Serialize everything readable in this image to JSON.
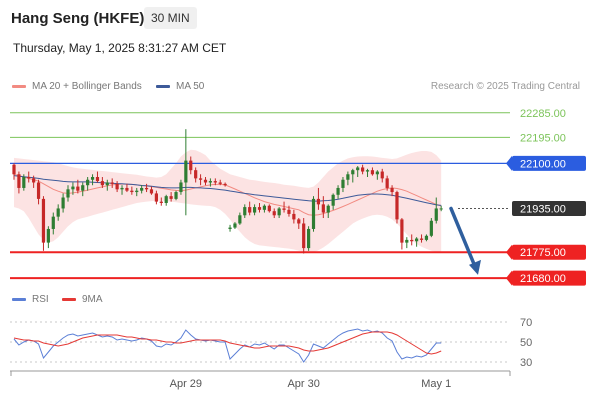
{
  "header": {
    "title": "Hang Seng (HKFE)",
    "timeframe": "30 MIN",
    "datetime": "Thursday, May 1, 2025 8:31:27 AM CET"
  },
  "legend": {
    "main": [
      {
        "label": "MA 20 + Bollinger Bands",
        "color": "#f28b82"
      },
      {
        "label": "MA 50",
        "color": "#3d5a99"
      }
    ],
    "rsi": [
      {
        "label": "RSI",
        "color": "#5b7fd6"
      },
      {
        "label": "9MA",
        "color": "#e53935"
      }
    ]
  },
  "credit": "Research © 2025 Trading Central",
  "colors": {
    "up": "#2e7d32",
    "down": "#c62828",
    "band": "#fbdede",
    "resistance": "#7cc45a",
    "pivot": "#2b5de0",
    "support": "#ee2222",
    "current": "#333333",
    "arrow": "#2f5f9e"
  },
  "chart_data": [
    {
      "type": "candlestick",
      "price_range": [
        21655,
        22350
      ],
      "levels": [
        {
          "value": 22285,
          "label": "22285.00",
          "kind": "resistance"
        },
        {
          "value": 22195,
          "label": "22195.00",
          "kind": "resistance"
        },
        {
          "value": 22100,
          "label": "22100.00",
          "kind": "pivot"
        },
        {
          "value": 21935,
          "label": "21935.00",
          "kind": "current"
        },
        {
          "value": 21775,
          "label": "21775.00",
          "kind": "support"
        },
        {
          "value": 21680,
          "label": "21680.00",
          "kind": "support"
        }
      ],
      "x_labels": [
        {
          "label": "Apr 29",
          "index": 35
        },
        {
          "label": "Apr 30",
          "index": 59
        },
        {
          "label": "May 1",
          "index": 86
        }
      ],
      "bar_count": 92,
      "ohlc": [
        [
          22095,
          22100,
          22040,
          22060
        ],
        [
          22060,
          22070,
          21990,
          22010
        ],
        [
          22010,
          22060,
          22000,
          22050
        ],
        [
          22050,
          22070,
          22030,
          22045
        ],
        [
          22045,
          22055,
          22010,
          22030
        ],
        [
          22030,
          22040,
          21950,
          21970
        ],
        [
          21970,
          21980,
          21780,
          21810
        ],
        [
          21810,
          21870,
          21790,
          21860
        ],
        [
          21860,
          21920,
          21840,
          21905
        ],
        [
          21905,
          21950,
          21890,
          21935
        ],
        [
          21935,
          21990,
          21920,
          21975
        ],
        [
          21975,
          22020,
          21960,
          22005
        ],
        [
          22005,
          22030,
          21985,
          22015
        ],
        [
          22015,
          22040,
          21990,
          22000
        ],
        [
          22000,
          22030,
          21980,
          22020
        ],
        [
          22020,
          22050,
          22000,
          22040
        ],
        [
          22040,
          22060,
          22020,
          22050
        ],
        [
          22050,
          22070,
          22030,
          22035
        ],
        [
          22035,
          22050,
          22010,
          22020
        ],
        [
          22020,
          22040,
          22000,
          22030
        ],
        [
          22030,
          22045,
          22010,
          22025
        ],
        [
          22025,
          22035,
          21995,
          22005
        ],
        [
          22005,
          22020,
          21985,
          22010
        ],
        [
          22010,
          22025,
          21995,
          22000
        ],
        [
          22000,
          22015,
          21985,
          21995
        ],
        [
          21995,
          22010,
          21980,
          22000
        ],
        [
          22000,
          22020,
          21990,
          22010
        ],
        [
          22010,
          22025,
          21995,
          22005
        ],
        [
          22005,
          22015,
          21985,
          21990
        ],
        [
          21990,
          22000,
          21950,
          21960
        ],
        [
          21960,
          21975,
          21945,
          21955
        ],
        [
          21955,
          21985,
          21945,
          21980
        ],
        [
          21980,
          21995,
          21960,
          21970
        ],
        [
          21970,
          22000,
          21965,
          21995
        ],
        [
          21995,
          22040,
          21985,
          22030
        ],
        [
          22030,
          22225,
          21910,
          22110
        ],
        [
          22110,
          22125,
          22060,
          22075
        ],
        [
          22075,
          22085,
          22030,
          22045
        ],
        [
          22045,
          22060,
          22020,
          22040
        ],
        [
          22040,
          22050,
          22020,
          22030
        ],
        [
          22030,
          22045,
          22015,
          22035
        ],
        [
          22035,
          22045,
          22020,
          22030
        ],
        [
          22030,
          22040,
          22020,
          22025
        ],
        [
          22025,
          22030,
          22015,
          22020
        ],
        [
          21860,
          21875,
          21850,
          21865
        ],
        [
          21865,
          21885,
          21860,
          21880
        ],
        [
          21880,
          21920,
          21875,
          21910
        ],
        [
          21910,
          21950,
          21900,
          21940
        ],
        [
          21940,
          21960,
          21910,
          21920
        ],
        [
          21920,
          21950,
          21910,
          21940
        ],
        [
          21940,
          21955,
          21920,
          21930
        ],
        [
          21930,
          21950,
          21920,
          21945
        ],
        [
          21945,
          21950,
          21920,
          21925
        ],
        [
          21925,
          21935,
          21900,
          21910
        ],
        [
          21910,
          21940,
          21900,
          21935
        ],
        [
          21935,
          21960,
          21920,
          21930
        ],
        [
          21930,
          21945,
          21905,
          21915
        ],
        [
          21915,
          21930,
          21880,
          21895
        ],
        [
          21895,
          21900,
          21860,
          21880
        ],
        [
          21880,
          21900,
          21770,
          21790
        ],
        [
          21790,
          21870,
          21780,
          21860
        ],
        [
          21860,
          21980,
          21850,
          21970
        ],
        [
          21970,
          22010,
          21930,
          21950
        ],
        [
          21950,
          21980,
          21900,
          21920
        ],
        [
          21920,
          21950,
          21900,
          21945
        ],
        [
          21945,
          21990,
          21930,
          21985
        ],
        [
          21985,
          22020,
          21970,
          22010
        ],
        [
          22010,
          22050,
          21995,
          22040
        ],
        [
          22040,
          22070,
          22020,
          22060
        ],
        [
          22060,
          22080,
          22030,
          22075
        ],
        [
          22075,
          22090,
          22050,
          22085
        ],
        [
          22085,
          22095,
          22060,
          22070
        ],
        [
          22070,
          22080,
          22050,
          22075
        ],
        [
          22075,
          22085,
          22055,
          22060
        ],
        [
          22060,
          22075,
          22040,
          22070
        ],
        [
          22070,
          22080,
          22030,
          22045
        ],
        [
          22045,
          22055,
          22000,
          22010
        ],
        [
          22010,
          22020,
          21980,
          21995
        ],
        [
          21995,
          22000,
          21880,
          21895
        ],
        [
          21895,
          21900,
          21785,
          21810
        ],
        [
          21810,
          21830,
          21790,
          21820
        ],
        [
          21820,
          21840,
          21800,
          21815
        ],
        [
          21815,
          21830,
          21795,
          21825
        ],
        [
          21825,
          21840,
          21810,
          21820
        ],
        [
          21820,
          21840,
          21815,
          21835
        ],
        [
          21835,
          21900,
          21830,
          21890
        ],
        [
          21890,
          21975,
          21880,
          21935
        ],
        [
          21935,
          21945,
          21925,
          21935
        ]
      ],
      "ma50": [
        22055,
        22053,
        22051,
        22049,
        22047,
        22045,
        22042,
        22040,
        22038,
        22036,
        22034,
        22033,
        22032,
        22032,
        22032,
        22032,
        22031,
        22030,
        22029,
        22028,
        22027,
        22026,
        22025,
        22024,
        22023,
        22021,
        22019,
        22018,
        22016,
        22014,
        22012,
        22011,
        22010,
        22010,
        22011,
        22012,
        22012,
        22011,
        22010,
        22009,
        22008,
        22006,
        22004,
        22002,
        21999,
        21996,
        21993,
        21990,
        21988,
        21985,
        21983,
        21981,
        21979,
        21977,
        21975,
        21973,
        21971,
        21969,
        21967,
        21965,
        21963,
        21962,
        21962,
        21963,
        21964,
        21966,
        21969,
        21972,
        21976,
        21980,
        21983,
        21985,
        21987,
        21988,
        21988,
        21987,
        21985,
        21983,
        21980,
        21976,
        21972,
        21968,
        21964,
        21960,
        21956,
        21952,
        21948,
        21946
      ],
      "ma20": [
        22060,
        22055,
        22050,
        22045,
        22040,
        22035,
        22025,
        22015,
        22005,
        21998,
        21992,
        21990,
        21992,
        21995,
        21998,
        22002,
        22006,
        22010,
        22014,
        22018,
        22021,
        22023,
        22024,
        22024,
        22023,
        22021,
        22019,
        22017,
        22015,
        22012,
        22009,
        22006,
        22003,
        22001,
        22000,
        22002,
        22006,
        22010,
        22014,
        22018,
        22021,
        22023,
        22023,
        22021,
        22014,
        22006,
        21998,
        21990,
        21982,
        21974,
        21967,
        21960,
        21955,
        21950,
        21946,
        21942,
        21938,
        21934,
        21930,
        21920,
        21912,
        21910,
        21912,
        21916,
        21922,
        21928,
        21935,
        21942,
        21950,
        21958,
        21966,
        21974,
        21982,
        21990,
        21998,
        22004,
        22008,
        22010,
        22008,
        22004,
        21998,
        21990,
        21982,
        21974,
        21966,
        21958,
        21950,
        21944
      ],
      "band_upper": [
        22120,
        22118,
        22116,
        22114,
        22112,
        22110,
        22108,
        22106,
        22104,
        22100,
        22095,
        22090,
        22085,
        22082,
        22080,
        22078,
        22076,
        22074,
        22072,
        22070,
        22068,
        22066,
        22064,
        22062,
        22060,
        22058,
        22055,
        22052,
        22050,
        22048,
        22050,
        22060,
        22080,
        22100,
        22125,
        22140,
        22150,
        22148,
        22140,
        22130,
        22110,
        22095,
        22080,
        22070,
        22060,
        22055,
        22050,
        22045,
        22040,
        22038,
        22035,
        22032,
        22030,
        22028,
        22025,
        22022,
        22020,
        22018,
        22015,
        22012,
        22010,
        22015,
        22030,
        22050,
        22070,
        22085,
        22100,
        22110,
        22118,
        22122,
        22125,
        22126,
        22126,
        22125,
        22123,
        22120,
        22118,
        22116,
        22118,
        22125,
        22132,
        22138,
        22142,
        22145,
        22145,
        22142,
        22130,
        22110
      ],
      "band_lower": [
        21940,
        21935,
        21925,
        21900,
        21870,
        21840,
        21820,
        21810,
        21815,
        21830,
        21850,
        21870,
        21885,
        21895,
        21900,
        21905,
        21910,
        21915,
        21920,
        21925,
        21930,
        21935,
        21940,
        21945,
        21950,
        21955,
        21958,
        21960,
        21962,
        21963,
        21963,
        21962,
        21960,
        21958,
        21955,
        21953,
        21950,
        21948,
        21946,
        21945,
        21944,
        21940,
        21930,
        21915,
        21895,
        21870,
        21850,
        21830,
        21815,
        21805,
        21800,
        21798,
        21796,
        21794,
        21792,
        21790,
        21788,
        21785,
        21780,
        21775,
        21772,
        21775,
        21782,
        21792,
        21805,
        21820,
        21835,
        21850,
        21865,
        21880,
        21890,
        21898,
        21905,
        21910,
        21912,
        21910,
        21905,
        21895,
        21880,
        21860,
        21840,
        21820,
        21805,
        21795,
        21787,
        21780,
        21776,
        21775
      ],
      "projection": [
        {
          "index": 89,
          "value": 21935
        },
        {
          "index": 94.5,
          "value": 21692
        }
      ]
    },
    {
      "type": "line",
      "title": "",
      "ylim": [
        20,
        80
      ],
      "y_ticks": [
        70,
        50,
        30
      ],
      "series": [
        {
          "name": "RSI",
          "values": [
            53,
            47,
            50,
            52,
            51,
            48,
            34,
            40,
            46,
            50,
            54,
            57,
            58,
            56,
            57,
            58,
            59,
            57,
            55,
            56,
            55,
            52,
            53,
            52,
            51,
            52,
            54,
            53,
            51,
            46,
            45,
            48,
            47,
            50,
            54,
            62,
            57,
            53,
            52,
            51,
            52,
            51,
            50,
            50,
            33,
            38,
            43,
            47,
            45,
            48,
            47,
            49,
            46,
            43,
            47,
            47,
            44,
            41,
            38,
            30,
            37,
            48,
            46,
            44,
            48,
            52,
            56,
            59,
            61,
            62,
            63,
            61,
            62,
            60,
            61,
            59,
            54,
            51,
            40,
            33,
            35,
            34,
            36,
            35,
            37,
            43,
            49,
            49
          ]
        },
        {
          "name": "9MA",
          "values": [
            54,
            53,
            52,
            52,
            51,
            51,
            49,
            48,
            47,
            46,
            47,
            48,
            50,
            52,
            54,
            55,
            56,
            57,
            57,
            57,
            57,
            57,
            56,
            55,
            55,
            54,
            53,
            53,
            52,
            52,
            51,
            50,
            50,
            49,
            49,
            50,
            51,
            52,
            52,
            52,
            52,
            52,
            52,
            51,
            49,
            48,
            47,
            46,
            45,
            44,
            44,
            45,
            46,
            46,
            46,
            46,
            46,
            45,
            44,
            42,
            41,
            41,
            42,
            43,
            44,
            46,
            48,
            50,
            52,
            54,
            56,
            58,
            59,
            60,
            60,
            60,
            60,
            59,
            57,
            54,
            51,
            48,
            45,
            42,
            39,
            38,
            39,
            41
          ]
        }
      ]
    }
  ]
}
